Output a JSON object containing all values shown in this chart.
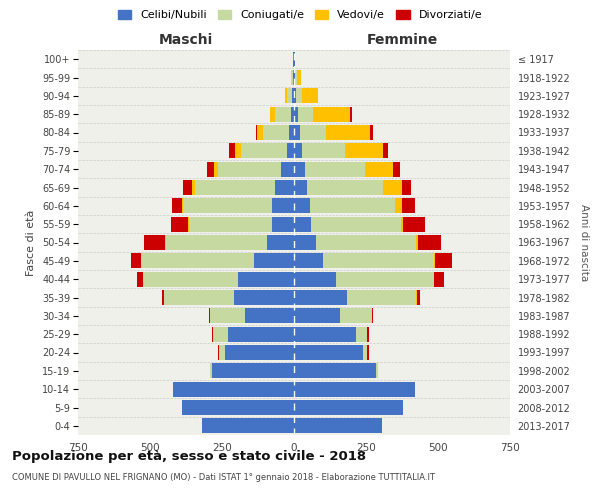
{
  "age_groups": [
    "0-4",
    "5-9",
    "10-14",
    "15-19",
    "20-24",
    "25-29",
    "30-34",
    "35-39",
    "40-44",
    "45-49",
    "50-54",
    "55-59",
    "60-64",
    "65-69",
    "70-74",
    "75-79",
    "80-84",
    "85-89",
    "90-94",
    "95-99",
    "100+"
  ],
  "birth_years": [
    "2013-2017",
    "2008-2012",
    "2003-2007",
    "1998-2002",
    "1993-1997",
    "1988-1992",
    "1983-1987",
    "1978-1982",
    "1973-1977",
    "1968-1972",
    "1963-1967",
    "1958-1962",
    "1953-1957",
    "1948-1952",
    "1943-1947",
    "1938-1942",
    "1933-1937",
    "1928-1932",
    "1923-1927",
    "1918-1922",
    "≤ 1917"
  ],
  "maschi": {
    "celibi": [
      320,
      390,
      420,
      285,
      240,
      230,
      170,
      210,
      195,
      140,
      95,
      75,
      75,
      65,
      45,
      25,
      18,
      12,
      8,
      4,
      2
    ],
    "coniugati": [
      0,
      0,
      0,
      5,
      20,
      50,
      120,
      240,
      330,
      390,
      350,
      290,
      310,
      280,
      220,
      160,
      90,
      55,
      18,
      6,
      1
    ],
    "vedovi": [
      0,
      0,
      0,
      0,
      0,
      0,
      0,
      0,
      1,
      2,
      2,
      3,
      5,
      10,
      12,
      20,
      20,
      15,
      5,
      1,
      0
    ],
    "divorziati": [
      0,
      0,
      0,
      0,
      5,
      5,
      5,
      10,
      20,
      35,
      75,
      60,
      35,
      30,
      25,
      20,
      5,
      3,
      1,
      0,
      0
    ]
  },
  "femmine": {
    "nubili": [
      305,
      380,
      420,
      285,
      240,
      215,
      160,
      185,
      145,
      100,
      75,
      60,
      55,
      45,
      38,
      28,
      20,
      15,
      8,
      5,
      2
    ],
    "coniugate": [
      0,
      0,
      0,
      5,
      15,
      40,
      110,
      240,
      340,
      385,
      350,
      310,
      295,
      265,
      210,
      150,
      90,
      50,
      20,
      5,
      1
    ],
    "vedove": [
      0,
      0,
      0,
      0,
      0,
      0,
      1,
      1,
      2,
      4,
      5,
      10,
      25,
      65,
      95,
      130,
      155,
      130,
      55,
      15,
      2
    ],
    "divorziate": [
      0,
      0,
      0,
      0,
      5,
      5,
      5,
      10,
      35,
      60,
      80,
      75,
      45,
      30,
      25,
      20,
      10,
      5,
      2,
      0,
      0
    ]
  },
  "colors": {
    "celibi": "#4472c4",
    "coniugati": "#c5d9a0",
    "vedovi": "#ffc000",
    "divorziati": "#cc0000"
  },
  "xlim": 750,
  "title": "Popolazione per età, sesso e stato civile - 2018",
  "subtitle": "COMUNE DI PAVULLO NEL FRIGNANO (MO) - Dati ISTAT 1° gennaio 2018 - Elaborazione TUTTITALIA.IT",
  "xlabel_maschi": "Maschi",
  "xlabel_femmine": "Femmine",
  "ylabel": "Fasce di età",
  "ylabel_right": "Anni di nascita",
  "bg_color": "#f0f0eb",
  "grid_color": "#cccccc"
}
